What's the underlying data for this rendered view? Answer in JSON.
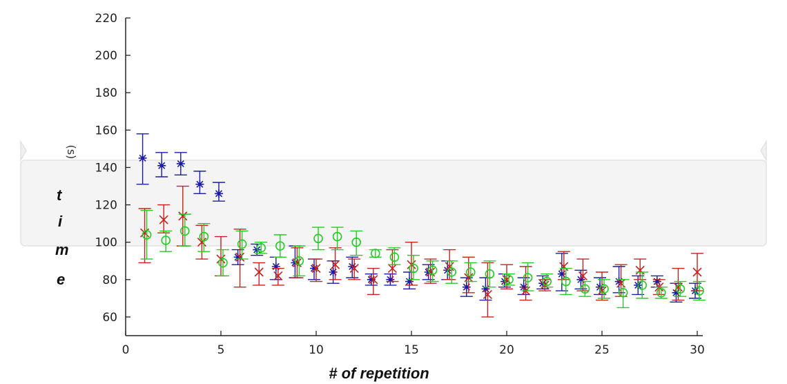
{
  "chart_data": {
    "type": "scatter",
    "title": "",
    "xlabel": "#  of repetition",
    "ylabel_letters": [
      "t",
      "i",
      "m",
      "e"
    ],
    "ylabel_unit": "(s)",
    "xlim": [
      0,
      30
    ],
    "ylim": [
      50,
      220
    ],
    "xticks": [
      "0",
      "5",
      "10",
      "15",
      "20",
      "25",
      "30"
    ],
    "yticks": [
      "60",
      "80",
      "100",
      "120",
      "140",
      "160",
      "180",
      "200",
      "220"
    ],
    "grid": false,
    "legend": false,
    "x": [
      1,
      2,
      3,
      4,
      5,
      6,
      7,
      8,
      9,
      10,
      11,
      12,
      13,
      14,
      15,
      16,
      17,
      18,
      19,
      20,
      21,
      22,
      23,
      24,
      25,
      26,
      27,
      28,
      29,
      30
    ],
    "series": [
      {
        "color": "#1a1aa8",
        "marker": "star",
        "values": [
          145,
          141,
          142,
          131,
          126,
          92,
          96,
          87,
          89,
          86,
          84,
          87,
          80,
          80,
          79,
          84,
          85,
          76,
          75,
          79,
          76,
          78,
          83,
          80,
          76,
          79,
          77,
          79,
          73,
          74
        ],
        "err_low": [
          131,
          135,
          136,
          126,
          122,
          88,
          93,
          80,
          81,
          80,
          78,
          81,
          77,
          77,
          75,
          80,
          80,
          71,
          69,
          76,
          72,
          75,
          74,
          75,
          72,
          73,
          72,
          76,
          68,
          70
        ],
        "err_high": [
          158,
          148,
          148,
          138,
          132,
          96,
          99,
          92,
          98,
          91,
          90,
          92,
          83,
          83,
          84,
          88,
          90,
          81,
          81,
          83,
          81,
          82,
          94,
          85,
          81,
          87,
          82,
          82,
          78,
          78
        ]
      },
      {
        "color": "#c8201a",
        "marker": "x",
        "values": [
          105,
          112,
          114,
          100,
          91,
          92,
          84,
          82,
          89,
          86,
          88,
          86,
          80,
          86,
          88,
          84,
          87,
          81,
          72,
          80,
          74,
          77,
          87,
          82,
          74,
          78,
          85,
          76,
          76,
          84
        ],
        "err_low": [
          89,
          105,
          98,
          91,
          82,
          76,
          77,
          77,
          81,
          79,
          80,
          80,
          72,
          79,
          77,
          78,
          80,
          73,
          60,
          75,
          69,
          74,
          80,
          74,
          69,
          71,
          80,
          72,
          69,
          74
        ],
        "err_high": [
          118,
          120,
          130,
          109,
          103,
          107,
          89,
          86,
          97,
          91,
          97,
          91,
          86,
          96,
          100,
          91,
          96,
          92,
          89,
          88,
          87,
          80,
          95,
          91,
          84,
          88,
          91,
          80,
          86,
          94
        ]
      },
      {
        "color": "#22cc22",
        "marker": "circle",
        "values": [
          104,
          101,
          106,
          103,
          89,
          99,
          97,
          98,
          90,
          102,
          103,
          100,
          94,
          92,
          86,
          85,
          84,
          84,
          83,
          80,
          81,
          79,
          79,
          75,
          75,
          73,
          77,
          73,
          75,
          74
        ],
        "err_low": [
          91,
          95,
          98,
          95,
          82,
          91,
          94,
          92,
          82,
          96,
          96,
          93,
          92,
          88,
          80,
          79,
          78,
          79,
          76,
          77,
          74,
          76,
          72,
          71,
          70,
          65,
          70,
          70,
          71,
          69
        ],
        "err_high": [
          117,
          106,
          115,
          110,
          96,
          106,
          100,
          104,
          98,
          108,
          108,
          106,
          96,
          97,
          93,
          90,
          90,
          89,
          90,
          83,
          89,
          83,
          86,
          79,
          80,
          80,
          84,
          76,
          79,
          79
        ]
      }
    ]
  }
}
